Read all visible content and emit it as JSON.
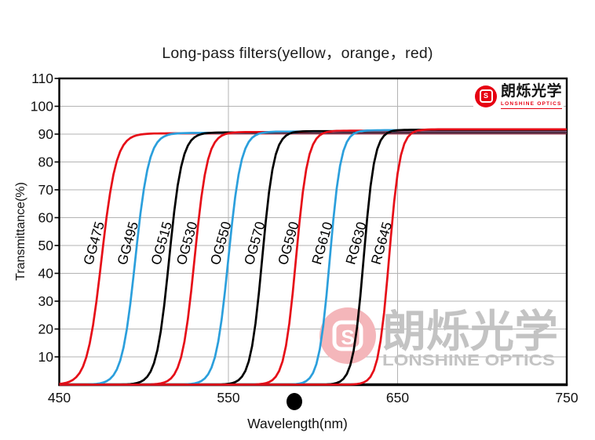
{
  "brand": {
    "logo_cn": "朗烁光学",
    "logo_en": "LONSHINE OPTICS",
    "icon_letter": "S",
    "brand_red": "#e60012"
  },
  "watermark": {
    "logo_cn": "朗烁光学",
    "logo_en": "LONSHINE OPTICS",
    "icon_letter": "S",
    "text_color": "#c3c3c3",
    "circle_color": "#f4b6ba"
  },
  "chart_data": {
    "type": "line",
    "title": "Long-pass filters(yellow，orange，red)",
    "xlabel": "Wavelength(nm)",
    "ylabel": "Transmittance(%)",
    "xlim": [
      450,
      750
    ],
    "ylim": [
      0,
      110
    ],
    "x_ticks": [
      450,
      550,
      650,
      750
    ],
    "y_ticks": [
      10,
      20,
      30,
      40,
      50,
      60,
      70,
      80,
      90,
      100,
      110
    ],
    "x_gridlines": [
      550,
      650
    ],
    "grid": true,
    "legend_position": "rotated-labels-beside-curves",
    "plateau_transmittance_pct": 91,
    "curve_model": "long-pass sigmoid: 0% below cut-on, 50% at cuton_nm, flat plateau above",
    "series": [
      {
        "name": "GG475",
        "color": "#e60e18",
        "cuton_nm": 475,
        "steepness_k_nm": 4.3
      },
      {
        "name": "GG495",
        "color": "#2b9fdc",
        "cuton_nm": 495,
        "steepness_k_nm": 4.0
      },
      {
        "name": "OG515",
        "color": "#000000",
        "cuton_nm": 515,
        "steepness_k_nm": 3.8
      },
      {
        "name": "OG530",
        "color": "#e60e18",
        "cuton_nm": 530,
        "steepness_k_nm": 3.8
      },
      {
        "name": "OG550",
        "color": "#2b9fdc",
        "cuton_nm": 550,
        "steepness_k_nm": 3.8
      },
      {
        "name": "OG570",
        "color": "#000000",
        "cuton_nm": 570,
        "steepness_k_nm": 3.5
      },
      {
        "name": "OG590",
        "color": "#e60e18",
        "cuton_nm": 590,
        "steepness_k_nm": 3.5
      },
      {
        "name": "RG610",
        "color": "#2b9fdc",
        "cuton_nm": 610,
        "steepness_k_nm": 3.3
      },
      {
        "name": "RG630",
        "color": "#000000",
        "cuton_nm": 630,
        "steepness_k_nm": 3.2
      },
      {
        "name": "RG645",
        "color": "#e60e18",
        "cuton_nm": 645,
        "steepness_k_nm": 3.2
      }
    ],
    "colors": {
      "grid": "#b3b3b3",
      "axis": "#000000",
      "tick_label": "#111111"
    }
  }
}
